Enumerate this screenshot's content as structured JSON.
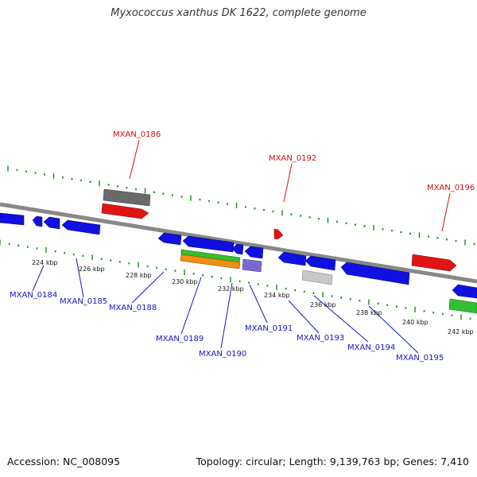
{
  "title": "Myxococcus xanthus DK 1622, complete genome",
  "footer": {
    "accession": "Accession: NC_008095",
    "summary": "Topology: circular; Length: 9,139,763 bp; Genes: 7,410"
  },
  "colors": {
    "backbone": "#888888",
    "tick": "#1a8a1a",
    "forward_gene": "#e01414",
    "reverse_gene": "#1010e0",
    "label_red": "#d01010",
    "label_blue": "#1515c8",
    "gray_feature": "#6a6a6a",
    "light_gray_feature": "#c8c8c8",
    "green_feature": "#30c030",
    "orange_feature": "#f09010",
    "purple_feature": "#7a6ad0"
  },
  "scale_labels": [
    "224 kbp",
    "226 kbp",
    "228 kbp",
    "230 kbp",
    "232 kbp",
    "234 kbp",
    "236 kbp",
    "238 kbp",
    "240 kbp",
    "242 kbp"
  ],
  "gene_labels_top": [
    "MXAN_0186",
    "MXAN_0192",
    "MXAN_0196"
  ],
  "gene_labels_bottom": [
    "MXAN_0184",
    "MXAN_0185",
    "MXAN_0188",
    "MXAN_0189",
    "MXAN_0190",
    "MXAN_0191",
    "MXAN_0193",
    "MXAN_0194",
    "MXAN_0195"
  ]
}
